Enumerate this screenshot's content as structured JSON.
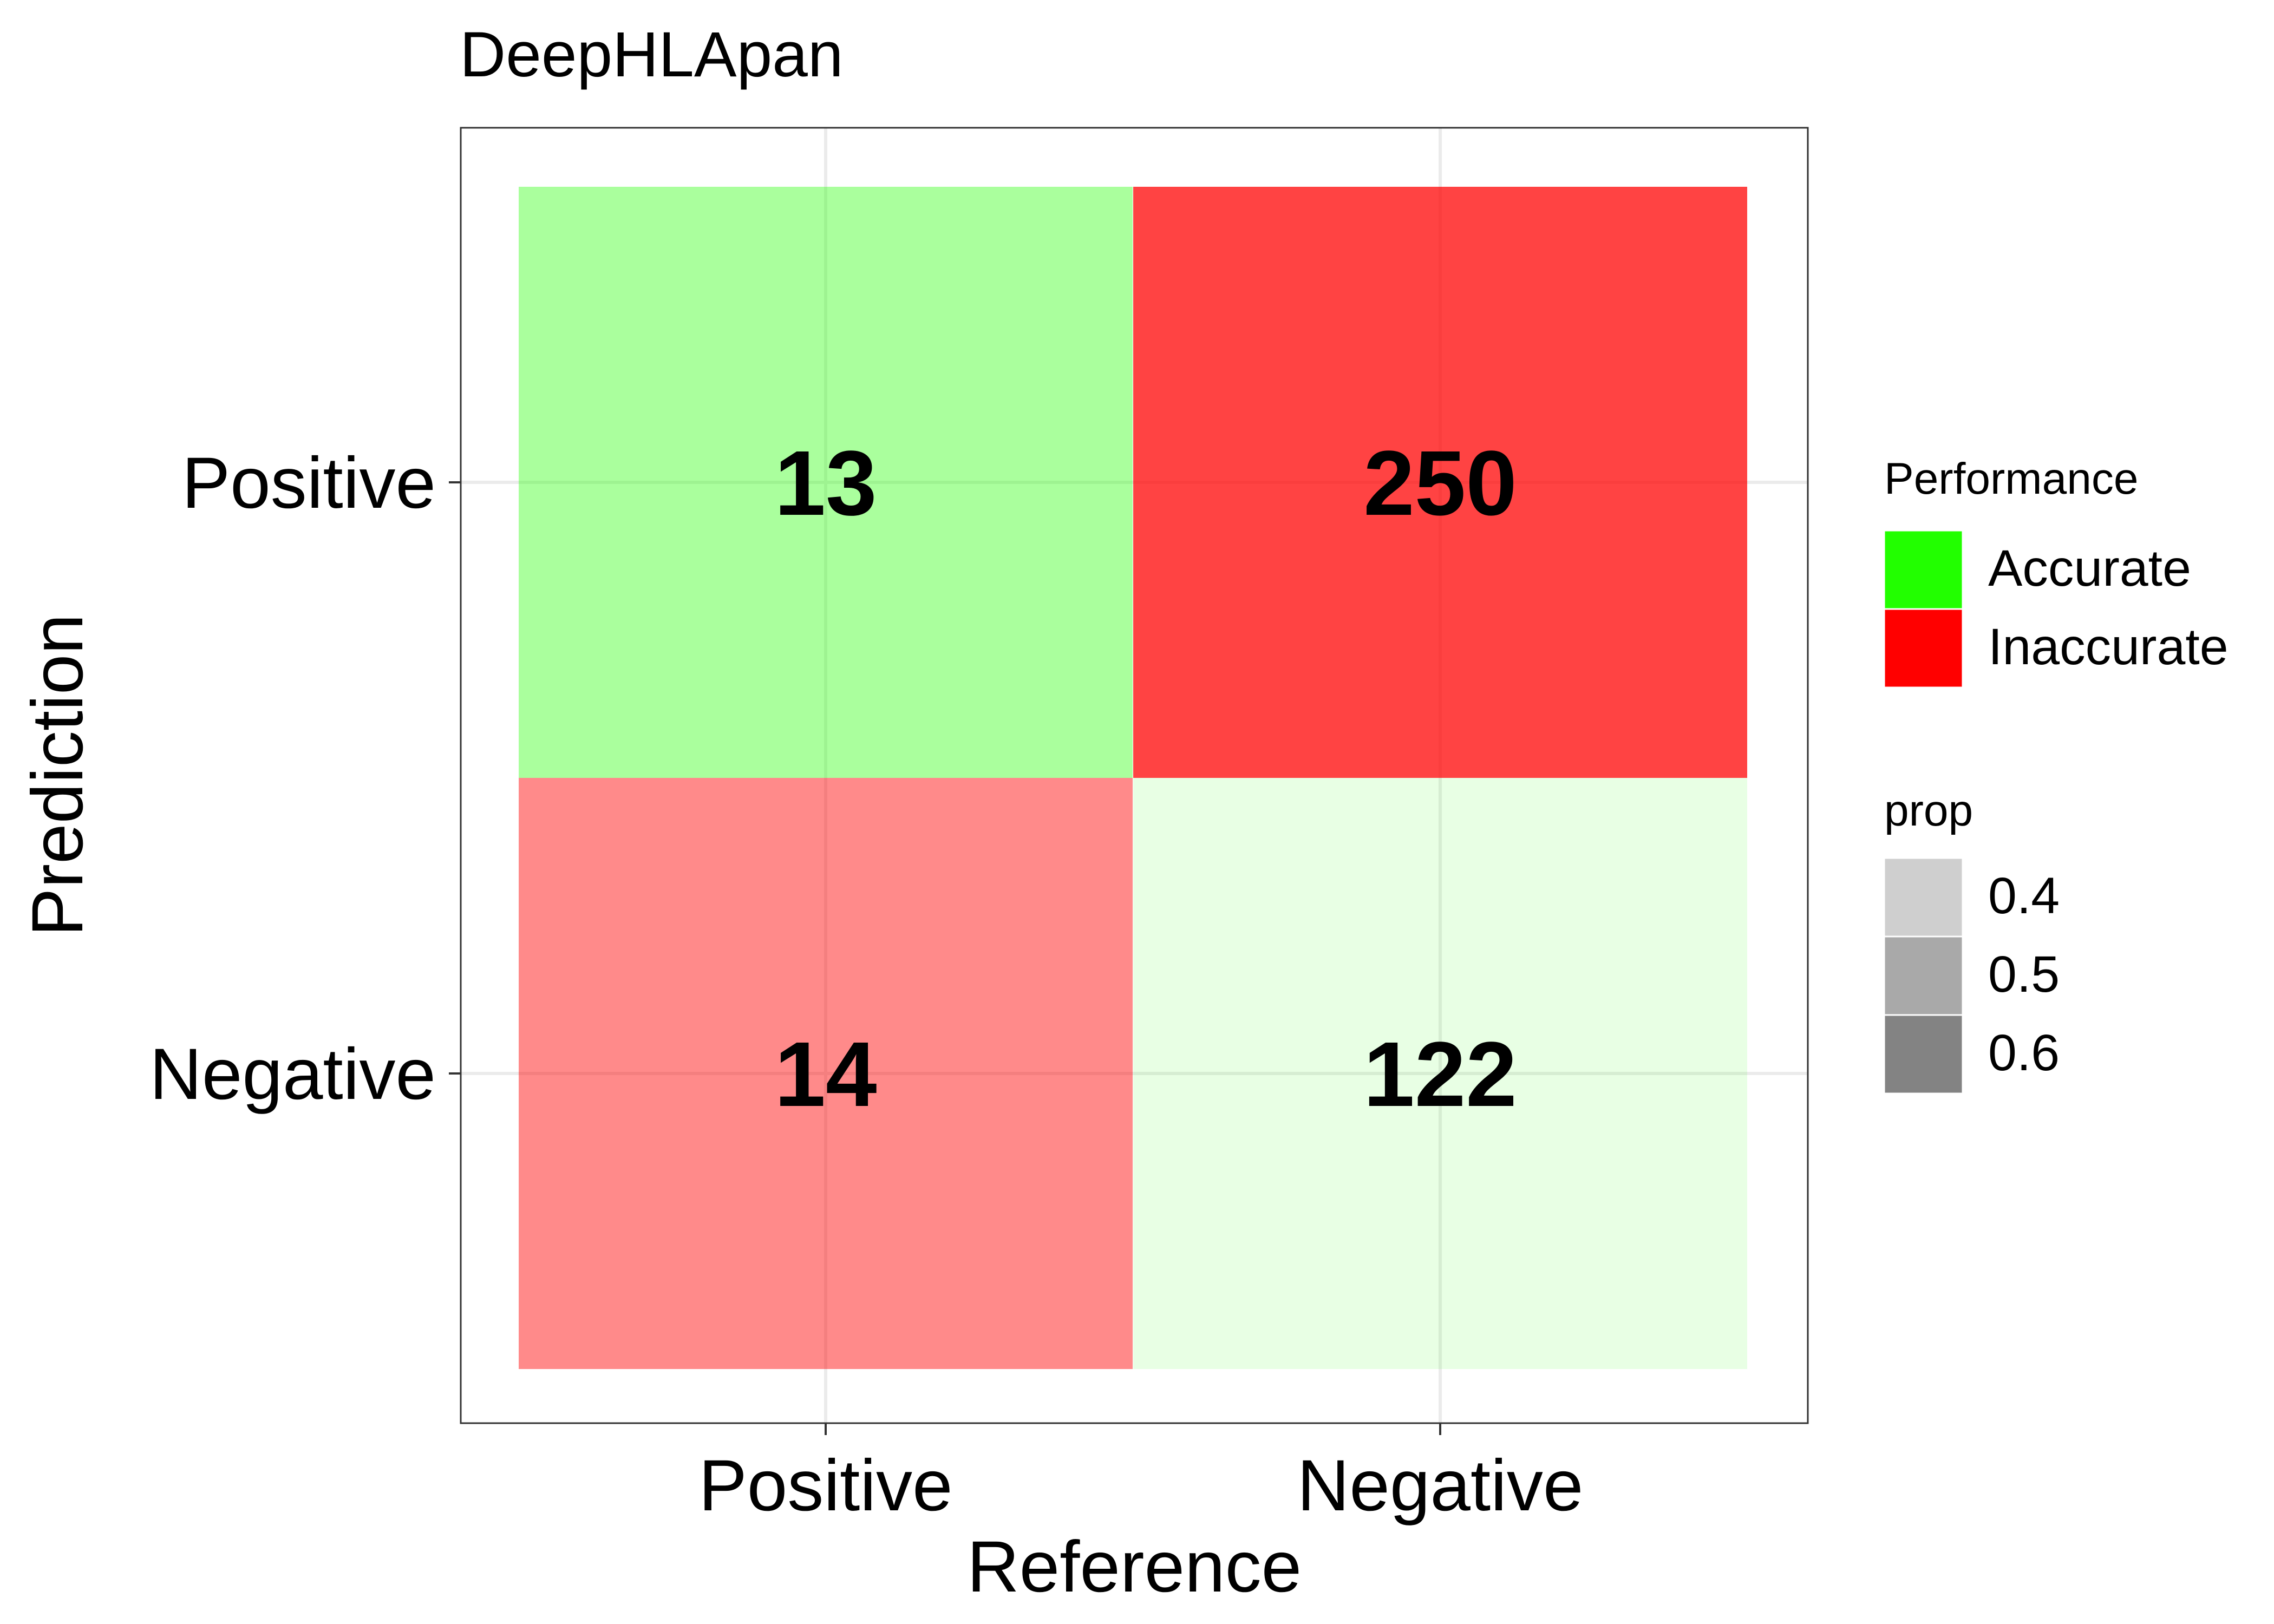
{
  "chart_data": {
    "type": "heatmap",
    "title": "DeepHLApan",
    "xlabel": "Reference",
    "ylabel": "Prediction",
    "x_categories": [
      "Positive",
      "Negative"
    ],
    "y_categories": [
      "Positive",
      "Negative"
    ],
    "grid": true,
    "cells": [
      {
        "reference": "Positive",
        "prediction": "Positive",
        "count": 13,
        "label": "13",
        "performance": "Accurate",
        "prop": 0.48
      },
      {
        "reference": "Negative",
        "prediction": "Positive",
        "count": 250,
        "label": "250",
        "performance": "Inaccurate",
        "prop": 0.67
      },
      {
        "reference": "Positive",
        "prediction": "Negative",
        "count": 14,
        "label": "14",
        "performance": "Inaccurate",
        "prop": 0.52
      },
      {
        "reference": "Negative",
        "prediction": "Negative",
        "count": 122,
        "label": "122",
        "performance": "Accurate",
        "prop": 0.33
      }
    ],
    "legend": {
      "placement": "right",
      "performance": {
        "title": "Performance",
        "items": [
          {
            "label": "Accurate",
            "color": "#22ff00"
          },
          {
            "label": "Inaccurate",
            "color": "#ff0000"
          }
        ]
      },
      "prop": {
        "title": "prop",
        "items": [
          {
            "label": "0.4",
            "value": 0.4
          },
          {
            "label": "0.5",
            "value": 0.5
          },
          {
            "label": "0.6",
            "value": 0.6
          }
        ]
      }
    }
  }
}
